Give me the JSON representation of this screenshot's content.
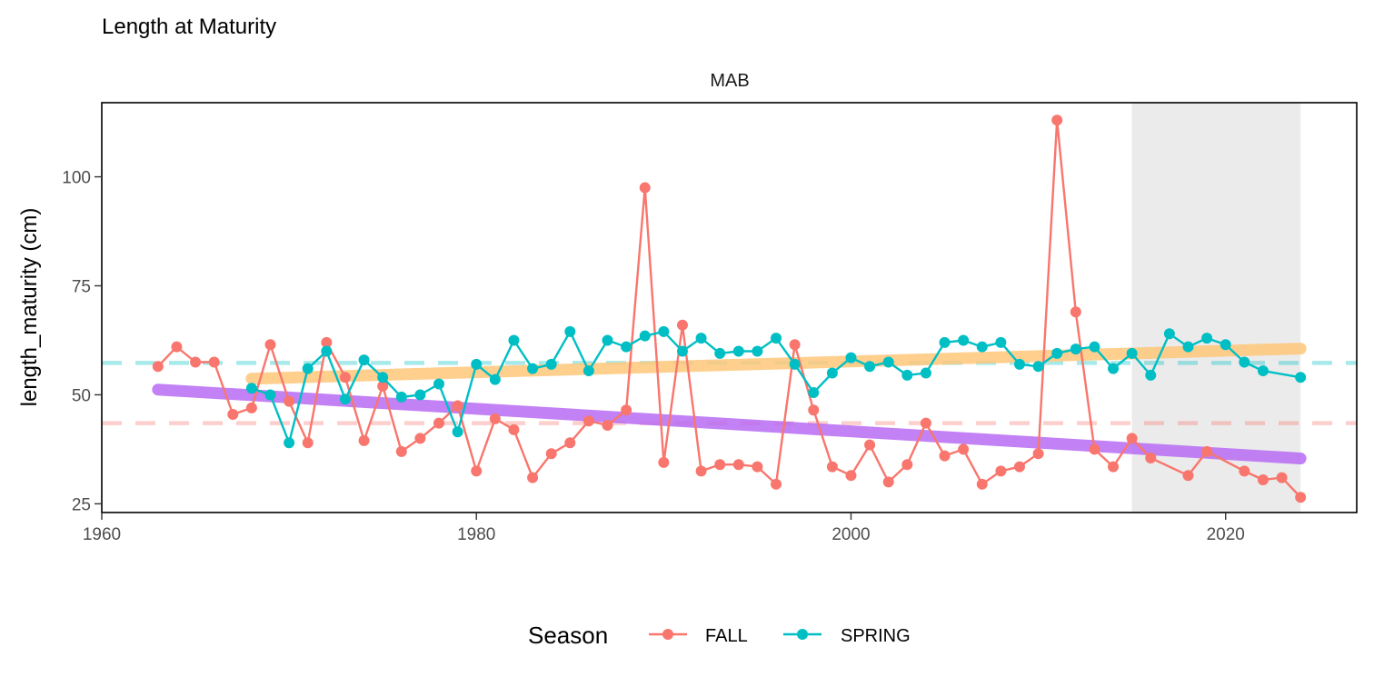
{
  "chart_data": {
    "type": "line",
    "title": "Length at Maturity",
    "facet": "MAB",
    "xlabel": "",
    "ylabel": "length_maturity (cm)",
    "xlim": [
      1960,
      2027
    ],
    "ylim": [
      23,
      117
    ],
    "xticks": [
      1960,
      1980,
      2000,
      2020
    ],
    "yticks": [
      25,
      50,
      75,
      100
    ],
    "grid": false,
    "legend": {
      "title": "Season",
      "position": "bottom"
    },
    "highlight_range": [
      2015,
      2024
    ],
    "colors": {
      "FALL": "#F8766D",
      "SPRING": "#00BFC4",
      "fall_trend": "#B76BF2",
      "spring_trend": "#FFC77A",
      "highlight": "#EBEBEB"
    },
    "series": [
      {
        "name": "FALL",
        "x": [
          1963,
          1964,
          1965,
          1966,
          1967,
          1968,
          1969,
          1970,
          1971,
          1972,
          1973,
          1974,
          1975,
          1976,
          1977,
          1978,
          1979,
          1980,
          1981,
          1982,
          1983,
          1984,
          1985,
          1986,
          1987,
          1988,
          1989,
          1990,
          1991,
          1992,
          1993,
          1994,
          1995,
          1996,
          1997,
          1998,
          1999,
          2000,
          2001,
          2002,
          2003,
          2004,
          2005,
          2006,
          2007,
          2008,
          2009,
          2010,
          2011,
          2012,
          2013,
          2014,
          2015,
          2016,
          2018,
          2019,
          2021,
          2022,
          2023,
          2024
        ],
        "values": [
          56.5,
          61,
          57.5,
          57.5,
          45.5,
          47,
          61.5,
          48.5,
          39,
          62,
          54,
          39.5,
          52,
          37,
          40,
          43.5,
          47.5,
          32.5,
          44.5,
          42,
          31,
          36.5,
          39,
          44,
          43,
          46.5,
          97.5,
          34.5,
          66,
          32.5,
          34,
          34,
          33.5,
          29.5,
          61.5,
          46.5,
          33.5,
          31.5,
          38.5,
          30,
          34,
          43.5,
          36,
          37.5,
          29.5,
          32.5,
          33.5,
          36.5,
          113,
          69,
          37.5,
          33.5,
          40,
          35.5,
          31.5,
          37,
          32.5,
          30.5,
          31,
          26.5
        ]
      },
      {
        "name": "SPRING",
        "x": [
          1968,
          1969,
          1970,
          1971,
          1972,
          1973,
          1974,
          1975,
          1976,
          1977,
          1978,
          1979,
          1980,
          1981,
          1982,
          1983,
          1984,
          1985,
          1986,
          1987,
          1988,
          1989,
          1990,
          1991,
          1992,
          1993,
          1994,
          1995,
          1996,
          1997,
          1998,
          1999,
          2000,
          2001,
          2002,
          2003,
          2004,
          2005,
          2006,
          2007,
          2008,
          2009,
          2010,
          2011,
          2012,
          2013,
          2014,
          2015,
          2016,
          2017,
          2018,
          2019,
          2020,
          2021,
          2022,
          2024
        ],
        "values": [
          51.5,
          50,
          39,
          56,
          60,
          49,
          58,
          54,
          49.5,
          50,
          52.5,
          41.5,
          57,
          53.5,
          62.5,
          56,
          57,
          64.5,
          55.5,
          62.5,
          61,
          63.5,
          64.5,
          60,
          63,
          59.5,
          60,
          60,
          63,
          57,
          50.5,
          55,
          58.5,
          56.5,
          57.5,
          54.5,
          55,
          62,
          62.5,
          61,
          62,
          57,
          56.5,
          59.5,
          60.5,
          61,
          56,
          59.5,
          54.5,
          64,
          61,
          63,
          61.5,
          57.5,
          55.5,
          54
        ]
      }
    ],
    "trend_lines": [
      {
        "series": "FALL",
        "x": [
          1963,
          2024
        ],
        "values": [
          51.2,
          35.4
        ]
      },
      {
        "series": "SPRING",
        "x": [
          1968,
          2024
        ],
        "values": [
          53.7,
          60.6
        ]
      }
    ],
    "reference_lines": [
      {
        "series": "FALL",
        "value": 43.5
      },
      {
        "series": "SPRING",
        "value": 57.3
      }
    ]
  }
}
